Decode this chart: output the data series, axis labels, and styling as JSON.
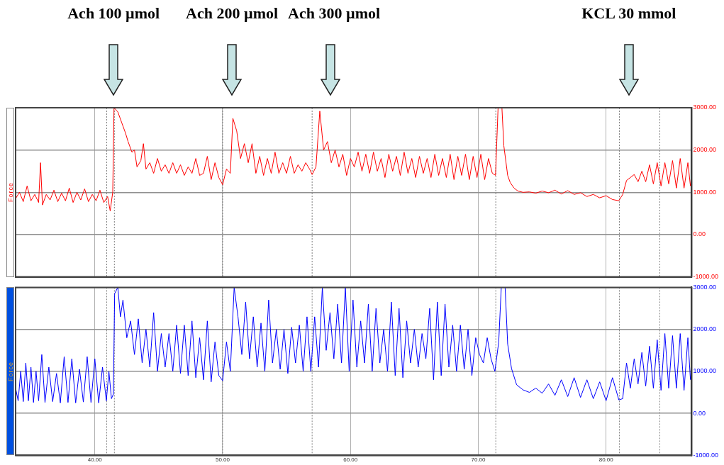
{
  "chart_data": [
    {
      "type": "line",
      "ylabel": "Force",
      "xlim": [
        33.8,
        86.7
      ],
      "ylim": [
        -1000,
        3000
      ],
      "xticks": [
        40,
        50,
        60,
        70,
        80
      ],
      "yticks": [
        {
          "value": -1000,
          "label": "-1000.00"
        },
        {
          "value": 0,
          "label": "0.00"
        },
        {
          "value": 1000,
          "label": "1000.00"
        },
        {
          "value": 2000,
          "label": "2000.00"
        },
        {
          "value": 3000,
          "label": "3000.00"
        }
      ],
      "tick_labels": "y",
      "grid": true,
      "marker": "none",
      "line_style": "solid",
      "annotations": [
        "Ach 100 µmol",
        "Ach 200 µmol",
        "Ach 300 µmol",
        "KCL 30 mmol"
      ],
      "ref_lines": [
        {
          "axis": "x",
          "value": 40.93,
          "color": "#808080",
          "line_style": "dotted"
        },
        {
          "axis": "x",
          "value": 41.53,
          "color": "#808080",
          "line_style": "dotted"
        },
        {
          "axis": "x",
          "value": 50.0,
          "color": "#808080",
          "line_style": "dotted"
        },
        {
          "axis": "x",
          "value": 57.0,
          "color": "#808080",
          "line_style": "dotted"
        },
        {
          "axis": "x",
          "value": 71.37,
          "color": "#808080",
          "line_style": "dotted"
        },
        {
          "axis": "x",
          "value": 81.04,
          "color": "#808080",
          "line_style": "dotted"
        },
        {
          "axis": "x",
          "value": 84.2,
          "color": "#808080",
          "line_style": "dotted"
        }
      ],
      "series": [
        {
          "color": "#ff0000",
          "x": [
            33.8,
            34.1,
            34.4,
            34.7,
            35.0,
            35.3,
            35.6,
            35.75,
            35.9,
            36.2,
            36.5,
            36.8,
            37.1,
            37.4,
            37.7,
            38.0,
            38.3,
            38.6,
            38.9,
            39.2,
            39.5,
            39.8,
            40.1,
            40.4,
            40.7,
            41.0,
            41.2,
            41.4,
            41.5,
            41.8,
            42.1,
            42.4,
            42.6,
            42.9,
            43.1,
            43.3,
            43.6,
            43.8,
            44.0,
            44.3,
            44.6,
            44.9,
            45.2,
            45.5,
            45.8,
            46.1,
            46.4,
            46.7,
            47.0,
            47.3,
            47.6,
            47.9,
            48.2,
            48.5,
            48.8,
            49.1,
            49.4,
            49.7,
            50.0,
            50.3,
            50.6,
            50.8,
            51.1,
            51.4,
            51.7,
            52.0,
            52.3,
            52.6,
            52.9,
            53.2,
            53.5,
            53.8,
            54.1,
            54.4,
            54.7,
            55.0,
            55.3,
            55.6,
            55.9,
            56.2,
            56.5,
            56.8,
            57.0,
            57.3,
            57.6,
            57.9,
            58.2,
            58.5,
            58.8,
            59.1,
            59.4,
            59.7,
            60.0,
            60.3,
            60.6,
            60.9,
            61.2,
            61.5,
            61.8,
            62.1,
            62.4,
            62.7,
            63.0,
            63.3,
            63.6,
            63.9,
            64.2,
            64.5,
            64.8,
            65.1,
            65.4,
            65.7,
            66.0,
            66.3,
            66.6,
            66.9,
            67.2,
            67.5,
            67.8,
            68.1,
            68.4,
            68.7,
            69.0,
            69.3,
            69.6,
            69.9,
            70.2,
            70.5,
            70.8,
            71.1,
            71.35,
            71.55,
            71.85,
            72.0,
            72.3,
            72.5,
            72.8,
            73.1,
            73.5,
            74.0,
            74.5,
            75.0,
            75.5,
            76.0,
            76.5,
            77.0,
            77.5,
            78.0,
            78.5,
            79.0,
            79.5,
            80.0,
            80.5,
            81.0,
            81.3,
            81.6,
            81.9,
            82.2,
            82.5,
            82.8,
            83.1,
            83.4,
            83.7,
            84.0,
            84.3,
            84.6,
            84.9,
            85.2,
            85.5,
            85.8,
            86.1,
            86.4,
            86.6
          ],
          "values": [
            850,
            1000,
            780,
            1150,
            800,
            950,
            760,
            1700,
            700,
            950,
            820,
            1050,
            780,
            980,
            800,
            1100,
            760,
            1000,
            820,
            1080,
            780,
            950,
            800,
            1050,
            760,
            900,
            560,
            1000,
            3000,
            2900,
            2650,
            2400,
            2200,
            1950,
            2000,
            1600,
            1750,
            2150,
            1550,
            1700,
            1450,
            1800,
            1500,
            1650,
            1450,
            1700,
            1450,
            1650,
            1400,
            1600,
            1450,
            1800,
            1400,
            1450,
            1850,
            1300,
            1700,
            1350,
            1180,
            1550,
            1450,
            2750,
            2450,
            1800,
            2150,
            1700,
            2150,
            1450,
            1850,
            1400,
            1800,
            1450,
            1950,
            1450,
            1700,
            1450,
            1850,
            1450,
            1650,
            1500,
            1700,
            1550,
            1420,
            1600,
            2920,
            2000,
            2200,
            1700,
            2000,
            1600,
            1900,
            1400,
            1800,
            1600,
            1950,
            1500,
            1900,
            1450,
            1950,
            1500,
            1800,
            1350,
            1900,
            1500,
            1850,
            1400,
            1950,
            1450,
            1800,
            1350,
            1850,
            1450,
            1800,
            1350,
            1900,
            1400,
            1800,
            1350,
            1900,
            1300,
            1850,
            1400,
            1900,
            1300,
            1850,
            1350,
            1900,
            1300,
            1800,
            1450,
            1400,
            3000,
            3000,
            2100,
            1400,
            1230,
            1100,
            1030,
            1000,
            1010,
            980,
            1030,
            990,
            1050,
            960,
            1040,
            950,
            990,
            900,
            950,
            870,
            920,
            830,
            800,
            950,
            1280,
            1350,
            1420,
            1250,
            1500,
            1250,
            1650,
            1200,
            1700,
            1150,
            1700,
            1200,
            1750,
            1100,
            1800,
            1100,
            1700,
            1150
          ]
        }
      ]
    },
    {
      "type": "line",
      "ylabel": "Force",
      "xlim": [
        33.8,
        86.7
      ],
      "ylim": [
        -1000,
        3000
      ],
      "xticks": [
        {
          "value": 40,
          "label": "40.00"
        },
        {
          "value": 50,
          "label": "50.00"
        },
        {
          "value": 60,
          "label": "60.00"
        },
        {
          "value": 70,
          "label": "70.00"
        },
        {
          "value": 80,
          "label": "80.00"
        }
      ],
      "yticks": [
        {
          "value": -1000,
          "label": "-1000.00"
        },
        {
          "value": 0,
          "label": "0.00"
        },
        {
          "value": 1000,
          "label": "1000.00"
        },
        {
          "value": 2000,
          "label": "2000.00"
        },
        {
          "value": 3000,
          "label": "3000.00"
        }
      ],
      "grid": true,
      "marker": "none",
      "line_style": "solid",
      "ref_lines": [
        {
          "axis": "x",
          "value": 40.93,
          "color": "#808080",
          "line_style": "dotted"
        },
        {
          "axis": "x",
          "value": 41.53,
          "color": "#808080",
          "line_style": "dotted"
        },
        {
          "axis": "x",
          "value": 50.0,
          "color": "#808080",
          "line_style": "dotted"
        },
        {
          "axis": "x",
          "value": 57.0,
          "color": "#808080",
          "line_style": "dotted"
        },
        {
          "axis": "x",
          "value": 71.37,
          "color": "#808080",
          "line_style": "dotted"
        },
        {
          "axis": "x",
          "value": 81.04,
          "color": "#808080",
          "line_style": "dotted"
        },
        {
          "axis": "x",
          "value": 84.2,
          "color": "#808080",
          "line_style": "dotted"
        }
      ],
      "series": [
        {
          "color": "#0000ff",
          "x": [
            33.8,
            34.0,
            34.2,
            34.4,
            34.6,
            34.8,
            35.0,
            35.2,
            35.4,
            35.6,
            35.85,
            36.1,
            36.4,
            36.7,
            37.0,
            37.3,
            37.6,
            37.9,
            38.2,
            38.5,
            38.8,
            39.1,
            39.4,
            39.7,
            40.0,
            40.3,
            40.6,
            40.9,
            41.1,
            41.3,
            41.45,
            41.55,
            41.8,
            42.0,
            42.2,
            42.5,
            42.8,
            43.1,
            43.4,
            43.7,
            44.0,
            44.3,
            44.6,
            44.9,
            45.2,
            45.5,
            45.8,
            46.1,
            46.4,
            46.7,
            47.0,
            47.3,
            47.6,
            47.9,
            48.2,
            48.5,
            48.8,
            49.1,
            49.4,
            49.7,
            50.0,
            50.3,
            50.6,
            50.9,
            51.2,
            51.5,
            51.8,
            52.1,
            52.4,
            52.7,
            53.0,
            53.3,
            53.6,
            53.9,
            54.2,
            54.5,
            54.8,
            55.1,
            55.4,
            55.7,
            56.0,
            56.3,
            56.6,
            56.9,
            57.2,
            57.5,
            57.8,
            58.1,
            58.4,
            58.7,
            59.0,
            59.3,
            59.6,
            59.9,
            60.2,
            60.5,
            60.8,
            61.1,
            61.4,
            61.7,
            62.0,
            62.3,
            62.6,
            62.9,
            63.2,
            63.5,
            63.8,
            64.1,
            64.4,
            64.7,
            65.0,
            65.3,
            65.6,
            65.9,
            66.2,
            66.5,
            66.8,
            67.1,
            67.4,
            67.7,
            68.0,
            68.3,
            68.6,
            68.9,
            69.2,
            69.5,
            69.8,
            70.1,
            70.4,
            70.7,
            71.0,
            71.3,
            71.6,
            71.8,
            72.1,
            72.3,
            72.6,
            73.0,
            73.5,
            74.0,
            74.5,
            75.0,
            75.5,
            76.0,
            76.5,
            77.0,
            77.5,
            78.0,
            78.5,
            79.0,
            79.5,
            80.0,
            80.5,
            81.0,
            81.3,
            81.6,
            81.9,
            82.2,
            82.5,
            82.8,
            83.1,
            83.4,
            83.7,
            84.0,
            84.3,
            84.6,
            84.9,
            85.2,
            85.5,
            85.8,
            86.1,
            86.4,
            86.6
          ],
          "values": [
            600,
            300,
            1000,
            280,
            1200,
            300,
            1100,
            260,
            1000,
            300,
            1400,
            260,
            1100,
            280,
            950,
            250,
            1350,
            260,
            1300,
            250,
            1050,
            270,
            1350,
            260,
            1300,
            250,
            1100,
            300,
            1000,
            350,
            460,
            2850,
            3000,
            2300,
            2700,
            1800,
            2200,
            1400,
            2250,
            1200,
            2000,
            1100,
            2400,
            1000,
            1900,
            1100,
            1900,
            1000,
            2100,
            950,
            2100,
            900,
            2200,
            850,
            1800,
            800,
            2200,
            750,
            1700,
            900,
            780,
            1700,
            1000,
            3000,
            2300,
            1400,
            2650,
            1300,
            2300,
            1100,
            2150,
            1000,
            2700,
            1200,
            2000,
            1050,
            2000,
            950,
            2050,
            1200,
            2100,
            1000,
            2300,
            1000,
            2300,
            1100,
            3000,
            1500,
            2400,
            1300,
            2600,
            1200,
            3000,
            1000,
            2700,
            1100,
            2200,
            1200,
            2600,
            1000,
            2500,
            1200,
            2000,
            1000,
            2650,
            900,
            2500,
            850,
            2200,
            1200,
            2000,
            1100,
            1900,
            1300,
            2500,
            800,
            2650,
            900,
            2600,
            1100,
            2100,
            1000,
            2100,
            1050,
            2000,
            900,
            1800,
            1400,
            1200,
            1800,
            1300,
            1000,
            1700,
            3000,
            3000,
            1650,
            1070,
            680,
            560,
            500,
            600,
            480,
            700,
            430,
            800,
            400,
            850,
            380,
            800,
            350,
            750,
            300,
            850,
            320,
            350,
            1200,
            600,
            1300,
            700,
            1450,
            650,
            1600,
            600,
            1750,
            550,
            1900,
            600,
            1850,
            600,
            1900,
            550,
            1800,
            800
          ]
        }
      ]
    }
  ]
}
